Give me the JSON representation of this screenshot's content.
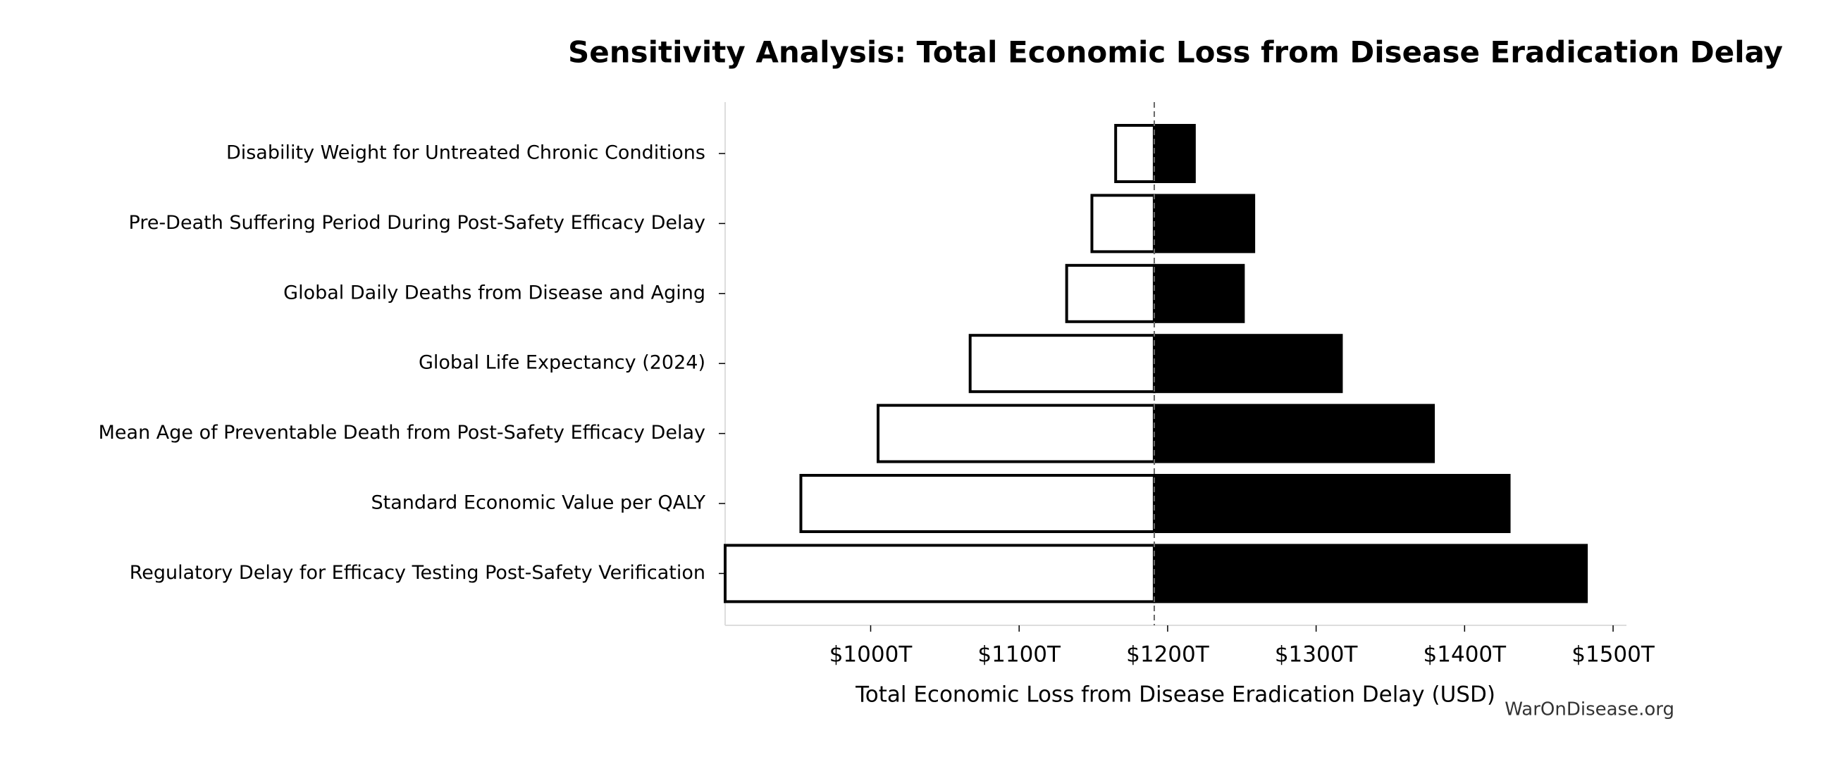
{
  "chart_data": {
    "type": "tornado",
    "title": "Sensitivity Analysis: Total Economic Loss from Disease Eradication Delay",
    "xlabel": "Total Economic Loss from Disease Eradication Delay (USD)",
    "watermark": "WarOnDisease.org",
    "categories": [
      "Disability Weight for Untreated Chronic Conditions",
      "Pre-Death Suffering Period During Post-Safety Efficacy Delay",
      "Global Daily Deaths from Disease and Aging",
      "Global Life Expectancy (2024)",
      "Mean Age of Preventable Death from Post-Safety Efficacy Delay",
      "Standard Economic Value per QALY",
      "Regulatory Delay for Efficacy Testing Post-Safety Verification"
    ],
    "baseline": 1191,
    "low_values": [
      1165,
      1149,
      1132,
      1067,
      1005,
      953,
      902
    ],
    "high_values": [
      1218,
      1258,
      1251,
      1317,
      1379,
      1430,
      1482
    ],
    "low_color": "#ffffff",
    "high_color": "#000000",
    "xlim": [
      902,
      1509
    ],
    "xticks": [
      {
        "value": 1000,
        "label": "$1000T"
      },
      {
        "value": 1100,
        "label": "$1100T"
      },
      {
        "value": 1200,
        "label": "$1200T"
      },
      {
        "value": 1300,
        "label": "$1300T"
      },
      {
        "value": 1400,
        "label": "$1400T"
      },
      {
        "value": 1500,
        "label": "$1500T"
      }
    ]
  }
}
